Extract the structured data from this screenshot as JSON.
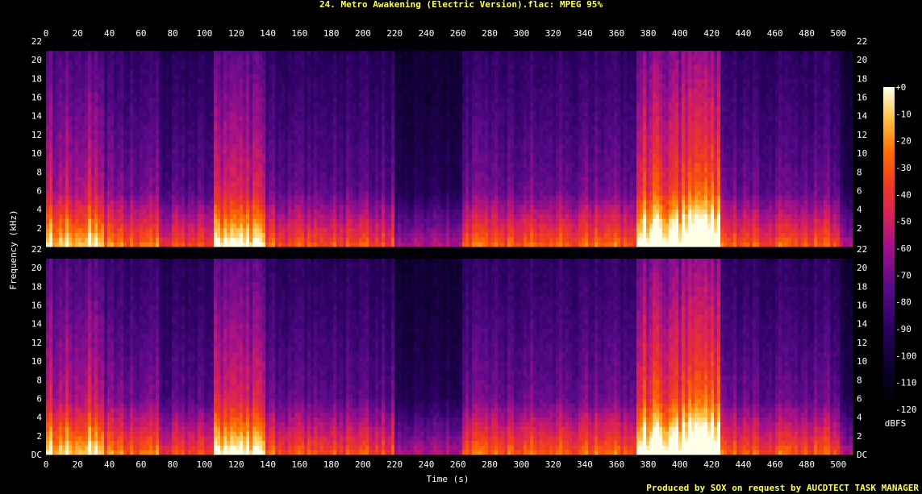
{
  "window": {
    "title": "24. Metro Awakening (Electric Version).flac: MPEG 95%",
    "footer": "Produced by SOX on request by AUCDTECT TASK MANAGER"
  },
  "chart_data": {
    "type": "heatmap",
    "title": "24. Metro Awakening (Electric Version).flac: MPEG 95%",
    "xlabel": "Time (s)",
    "ylabel": "Frequency (kHz)",
    "xlim": [
      0,
      509
    ],
    "ylim": [
      0,
      22
    ],
    "x_ticks": [
      0,
      20,
      40,
      60,
      80,
      100,
      120,
      140,
      160,
      180,
      200,
      220,
      240,
      260,
      280,
      300,
      320,
      340,
      360,
      380,
      400,
      420,
      440,
      460,
      480,
      500
    ],
    "y_ticks": [
      "DC",
      "2",
      "4",
      "6",
      "8",
      "10",
      "12",
      "14",
      "16",
      "18",
      "20",
      "22"
    ],
    "channels": 2,
    "cutoff_khz": 21,
    "colorbar": {
      "label": "dBFS",
      "range": [
        -120,
        0
      ],
      "ticks": [
        "+0",
        "-10",
        "-20",
        "-30",
        "-40",
        "-50",
        "-60",
        "-70",
        "-80",
        "-90",
        "-100",
        "-110",
        "-120"
      ]
    },
    "segments": [
      {
        "start": 0,
        "end": 37,
        "level": 0.72
      },
      {
        "start": 37,
        "end": 72,
        "level": 0.55
      },
      {
        "start": 72,
        "end": 105,
        "level": 0.45
      },
      {
        "start": 105,
        "end": 138,
        "level": 0.75
      },
      {
        "start": 138,
        "end": 145,
        "level": 0.5
      },
      {
        "start": 145,
        "end": 220,
        "level": 0.48
      },
      {
        "start": 220,
        "end": 263,
        "level": 0.28
      },
      {
        "start": 263,
        "end": 373,
        "level": 0.52
      },
      {
        "start": 373,
        "end": 425,
        "level": 0.9
      },
      {
        "start": 425,
        "end": 500,
        "level": 0.5
      },
      {
        "start": 500,
        "end": 509,
        "level": 0.3
      }
    ]
  }
}
